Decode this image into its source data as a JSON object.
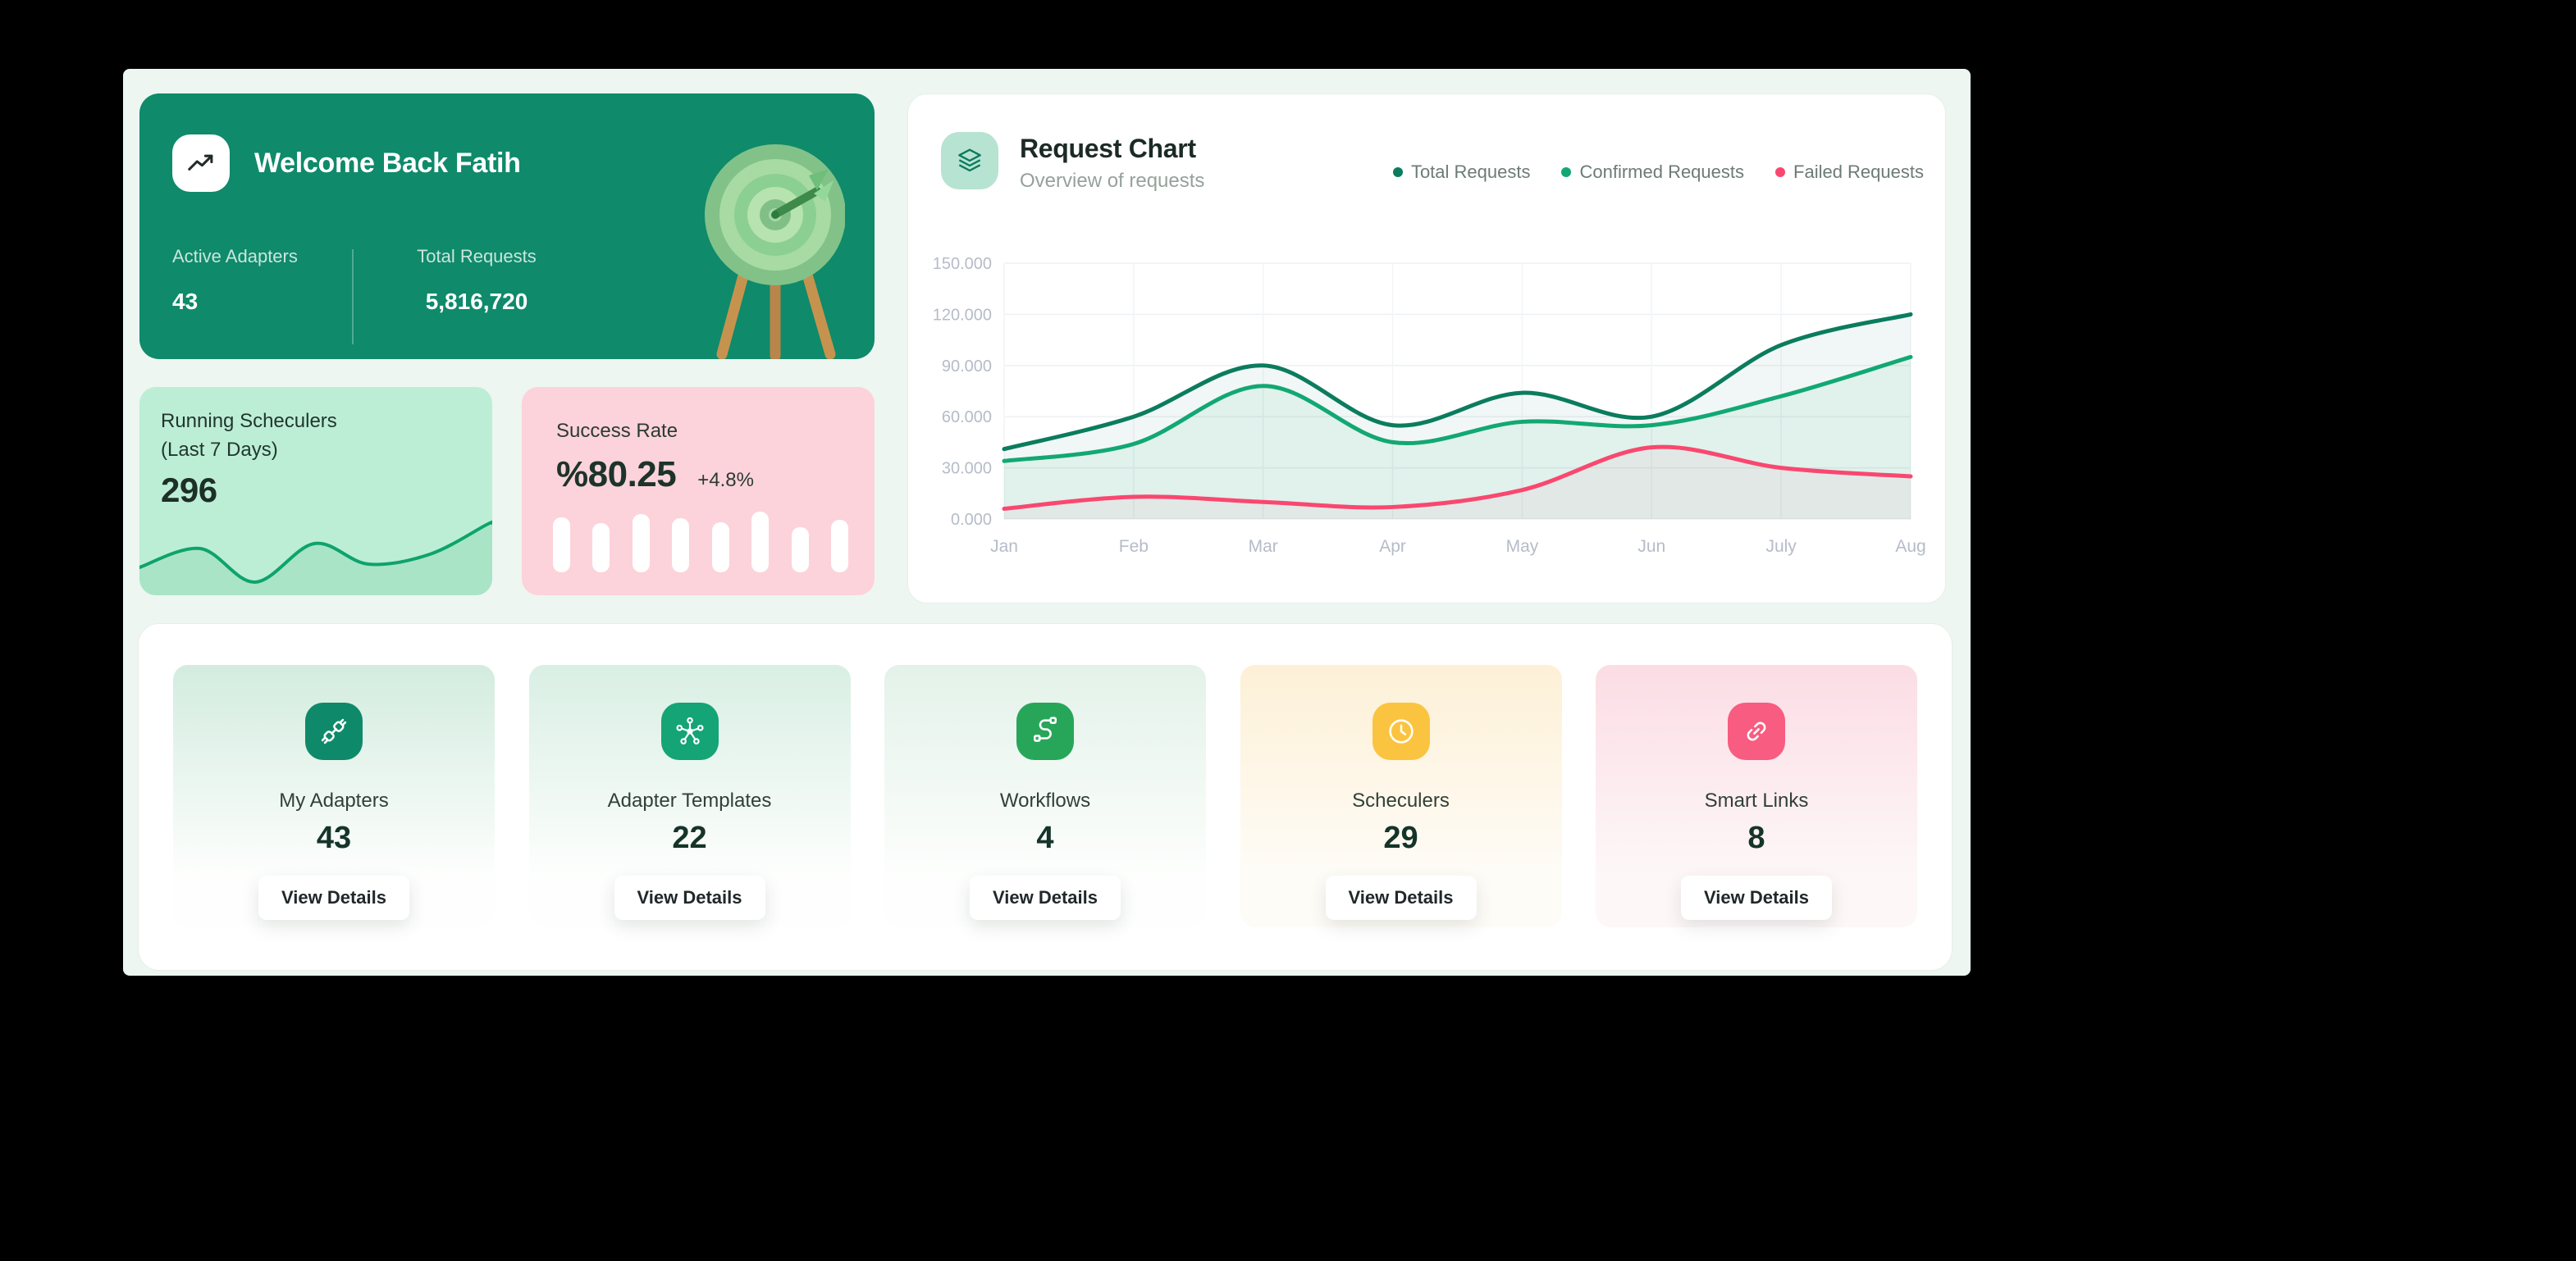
{
  "colors": {
    "page_background": "#edf6f1",
    "outer_background": "#000000",
    "welcome_green": "#0f8a6b",
    "running_mint": "#bceed6",
    "success_pink": "#fcd3da",
    "grid_line": "#eef1f4",
    "axis_label": "#b5bcc8"
  },
  "welcome": {
    "title": "Welcome Back Fatih",
    "stats": [
      {
        "label": "Active Adapters",
        "value": "43"
      },
      {
        "label": "Total Requests",
        "value": "5,816,720"
      }
    ]
  },
  "running": {
    "title": "Running Scheculers",
    "subtitle": "(Last 7 Days)",
    "value": "296"
  },
  "success": {
    "title": "Success Rate",
    "value": "%80.25",
    "delta": "+4.8%"
  },
  "chart_data": [
    {
      "id": "request-chart",
      "type": "line",
      "title": "Request Chart",
      "subtitle": "Overview of requests",
      "x": [
        "Jan",
        "Feb",
        "Mar",
        "Apr",
        "May",
        "Jun",
        "July",
        "Aug"
      ],
      "ytick_labels": [
        "150.000",
        "120.000",
        "90.000",
        "60.000",
        "30.000",
        "0.000"
      ],
      "ylim": [
        0,
        150000
      ],
      "grid": true,
      "legend_position": "top-right",
      "series": [
        {
          "name": "Total Requests",
          "color": "#0b7c5e",
          "fill": "rgba(11,124,94,0.06)",
          "values": [
            41000,
            60000,
            90000,
            55000,
            74000,
            60000,
            102000,
            120000
          ]
        },
        {
          "name": "Confirmed Requests",
          "color": "#12a873",
          "fill": "rgba(18,168,115,0.07)",
          "values": [
            34000,
            44000,
            78000,
            45000,
            57000,
            55000,
            72000,
            95000
          ]
        },
        {
          "name": "Failed Requests",
          "color": "#f9486f",
          "fill": "rgba(249,72,111,0.05)",
          "values": [
            6000,
            13000,
            10000,
            7000,
            17000,
            42000,
            30000,
            25000
          ]
        }
      ]
    },
    {
      "id": "success-bars",
      "type": "bar",
      "bar_color": "#ffffff",
      "values": [
        90,
        81,
        96,
        89,
        82,
        100,
        74,
        86
      ]
    },
    {
      "id": "running-spark",
      "type": "area",
      "line_color": "#0ea36c",
      "fill_color": "#a9e4c7",
      "points": [
        [
          0,
          62
        ],
        [
          74,
          39
        ],
        [
          141,
          80
        ],
        [
          213,
          33
        ],
        [
          279,
          58
        ],
        [
          354,
          46
        ],
        [
          423,
          10
        ],
        [
          430,
          8
        ]
      ]
    }
  ],
  "summary_cards": [
    {
      "title": "My Adapters",
      "value": "43",
      "button": "View Details",
      "icon": "plug-icon",
      "tile_color": "#0e8a6a",
      "bg_top": "#d3ecdf",
      "bg_bottom": "#fdfefd"
    },
    {
      "title": "Adapter Templates",
      "value": "22",
      "button": "View Details",
      "icon": "hub-icon",
      "tile_color": "#14a475",
      "bg_top": "#d9efe4",
      "bg_bottom": "#fdfefd"
    },
    {
      "title": "Workflows",
      "value": "4",
      "button": "View Details",
      "icon": "route-icon",
      "tile_color": "#27a65a",
      "bg_top": "#e3f2e9",
      "bg_bottom": "#fdfefd"
    },
    {
      "title": "Scheculers",
      "value": "29",
      "button": "View Details",
      "icon": "clock-icon",
      "tile_color": "#fbc440",
      "bg_top": "#fdf0d6",
      "bg_bottom": "#fefcf7"
    },
    {
      "title": "Smart Links",
      "value": "8",
      "button": "View Details",
      "icon": "link-icon",
      "tile_color": "#f85c80",
      "bg_top": "#fbdde4",
      "bg_bottom": "#fdf7f8"
    }
  ]
}
